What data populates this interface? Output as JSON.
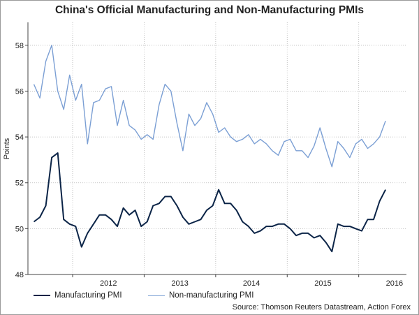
{
  "chart_data": {
    "type": "line",
    "title": "China's Official Manufacturing and Non-Manufacturing PMIs",
    "ylabel": "Points",
    "xlabel": "",
    "ylim": [
      48,
      59
    ],
    "yticks": [
      48,
      50,
      52,
      54,
      56,
      58
    ],
    "xlim": [
      2011.375,
      2016.667
    ],
    "x_tick_labels": [
      "2012",
      "2013",
      "2014",
      "2015",
      "2016"
    ],
    "grid": true,
    "legend_position": "bottom",
    "start": "2011-06",
    "series": [
      {
        "name": "Manufacturing PMI",
        "color": "#0b2447",
        "values": [
          50.3,
          50.5,
          51.0,
          53.1,
          53.3,
          50.4,
          50.2,
          50.1,
          49.2,
          49.8,
          50.2,
          50.6,
          50.6,
          50.4,
          50.1,
          50.9,
          50.6,
          50.8,
          50.1,
          50.3,
          51.0,
          51.1,
          51.4,
          51.4,
          51.0,
          50.5,
          50.2,
          50.3,
          50.4,
          50.8,
          51.0,
          51.7,
          51.1,
          51.1,
          50.8,
          50.3,
          50.1,
          49.8,
          49.9,
          50.1,
          50.1,
          50.2,
          50.2,
          50.0,
          49.7,
          49.8,
          49.8,
          49.6,
          49.7,
          49.4,
          49.0,
          50.2,
          50.1,
          50.1,
          50.0,
          49.9,
          50.4,
          50.4,
          51.2,
          51.7
        ]
      },
      {
        "name": "Non-manufacturing PMI",
        "color": "#7b9fd4",
        "values": [
          56.3,
          55.7,
          57.3,
          58.0,
          56.0,
          55.2,
          56.7,
          55.6,
          56.3,
          53.7,
          55.5,
          55.6,
          56.1,
          56.2,
          54.5,
          55.6,
          54.5,
          54.3,
          53.9,
          54.1,
          53.9,
          55.4,
          56.3,
          56.0,
          54.6,
          53.4,
          55.0,
          54.5,
          54.8,
          55.5,
          55.0,
          54.2,
          54.4,
          54.0,
          53.8,
          53.9,
          54.1,
          53.7,
          53.9,
          53.7,
          53.4,
          53.2,
          53.8,
          53.9,
          53.4,
          53.4,
          53.1,
          53.6,
          54.4,
          53.5,
          52.7,
          53.8,
          53.5,
          53.1,
          53.7,
          53.9,
          53.5,
          53.7,
          54.0,
          54.7
        ]
      }
    ]
  },
  "legend": {
    "manufacturing_label": "Manufacturing PMI",
    "non_manufacturing_label": "Non-manufacturing PMI"
  },
  "source_text": "Source: Thomson Reuters Datastream, Action Forex"
}
